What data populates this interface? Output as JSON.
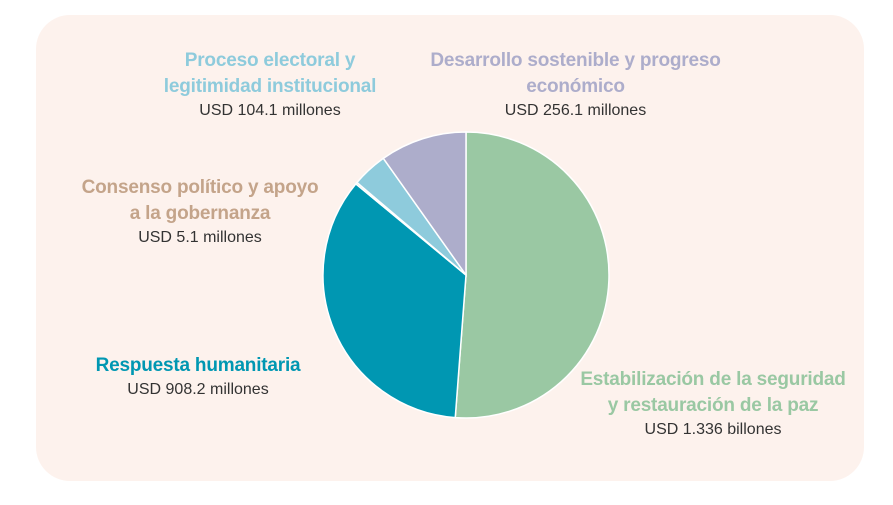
{
  "chart_data": {
    "type": "pie",
    "slices": [
      {
        "label_line1": "Estabilización de la seguridad",
        "label_line2": "y restauración de la paz",
        "value_text": "USD 1.336 billones",
        "value": 1336,
        "color": "#9ac8a3"
      },
      {
        "label_line1": "Respuesta humanitaria",
        "label_line2": "",
        "value_text": "USD 908.2 millones",
        "value": 908.2,
        "color": "#0097b2"
      },
      {
        "label_line1": "Consenso político y apoyo",
        "label_line2": "a la gobernanza",
        "value_text": "USD 5.1 millones",
        "value": 5.1,
        "color": "#c4a48a"
      },
      {
        "label_line1": "Proceso electoral y",
        "label_line2": "legitimidad institucional",
        "value_text": "USD 104.1 millones",
        "value": 104.1,
        "color": "#8ecbdc"
      },
      {
        "label_line1": "Desarrollo sostenible y progreso",
        "label_line2": "económico",
        "value_text": "USD 256.1 millones",
        "value": 256.1,
        "color": "#adadcb"
      }
    ]
  }
}
